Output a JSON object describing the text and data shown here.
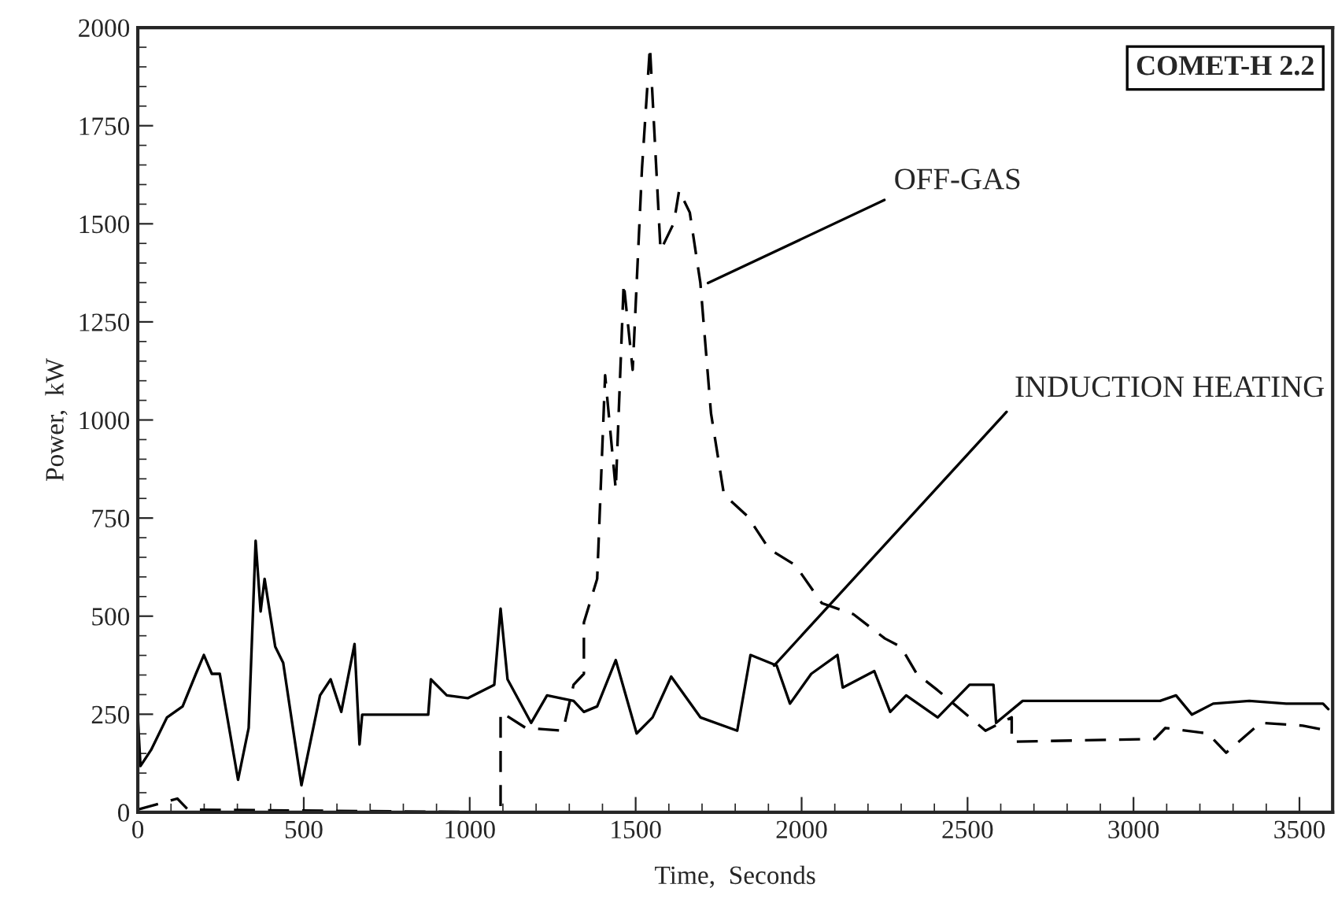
{
  "chart_data": {
    "type": "line",
    "xlabel": "Time,  Seconds",
    "ylabel": "Power,  kW",
    "xlim": [
      0,
      3600
    ],
    "xticks": [
      0,
      500,
      1000,
      1500,
      2000,
      2500,
      3000,
      3500
    ],
    "ylim": [
      0,
      2000
    ],
    "yticks": [
      0,
      250,
      500,
      750,
      1000,
      1250,
      1500,
      1750,
      2000
    ],
    "grid": false,
    "legend": false,
    "series": [
      {
        "color": "#000000",
        "line_style": "solid",
        "x": [
          0,
          8,
          40,
          88,
          135,
          175,
          199,
          223,
          247,
          302,
          334,
          355,
          370,
          382,
          414,
          438,
          493,
          549,
          581,
          613,
          653,
          668,
          676,
          875,
          883,
          931,
          994,
          1074,
          1093,
          1114,
          1185,
          1233,
          1313,
          1344,
          1384,
          1440,
          1503,
          1551,
          1607,
          1695,
          1806,
          1846,
          1925,
          1965,
          2029,
          2108,
          2124,
          2219,
          2267,
          2315,
          2410,
          2506,
          2578,
          2586,
          2666,
          3080,
          3128,
          3176,
          3240,
          3349,
          3460,
          3571,
          3587
        ],
        "values": [
          242,
          118,
          159,
          242,
          270,
          353,
          401,
          353,
          353,
          83,
          215,
          692,
          512,
          595,
          422,
          381,
          69,
          298,
          339,
          256,
          429,
          173,
          249,
          249,
          339,
          298,
          291,
          325,
          519,
          339,
          228,
          298,
          284,
          256,
          270,
          388,
          201,
          242,
          346,
          242,
          208,
          401,
          374,
          277,
          353,
          401,
          318,
          360,
          256,
          298,
          242,
          325,
          325,
          228,
          284,
          284,
          298,
          249,
          277,
          284,
          277,
          277,
          263
        ]
      },
      {
        "color": "#000000",
        "line_style": "dashed",
        "x": [
          0,
          119,
          151,
          1093,
          1093,
          1169,
          1281,
          1313,
          1344,
          1344,
          1384,
          1408,
          1440,
          1464,
          1491,
          1519,
          1543,
          1575,
          1615,
          1631,
          1663,
          1695,
          1727,
          1766,
          1838,
          1902,
          1981,
          2061,
          2156,
          2251,
          2299,
          2347,
          2410,
          2554,
          2633,
          2633,
          3064,
          3096,
          3224,
          3279,
          3383,
          3510,
          3587
        ],
        "values": [
          7,
          35,
          7,
          0,
          256,
          215,
          208,
          325,
          353,
          484,
          595,
          1114,
          823,
          1349,
          1128,
          1640,
          1951,
          1432,
          1502,
          1585,
          1529,
          1349,
          1017,
          810,
          754,
          671,
          630,
          533,
          505,
          443,
          422,
          353,
          311,
          208,
          242,
          180,
          187,
          215,
          201,
          152,
          228,
          221,
          208
        ]
      }
    ],
    "annotations": [
      {
        "text": "OFF-GAS",
        "x": 1718,
        "y": 1349
      },
      {
        "text": "INDUCTION HEATING",
        "x": 1917,
        "y": 374
      },
      "COMET-H 2.2"
    ]
  }
}
